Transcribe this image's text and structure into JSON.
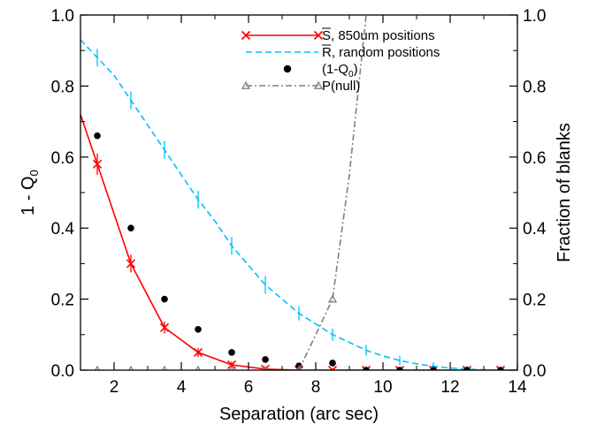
{
  "chart_data": {
    "type": "line",
    "xlabel": "Separation (arc sec)",
    "ylabel": "1 - Q",
    "ylabel_sub": "0",
    "y2label": "Fraction of blanks",
    "xlim": [
      1,
      14
    ],
    "ylim": [
      0,
      1
    ],
    "y2lim": [
      0,
      1
    ],
    "xticks": [
      "2",
      "4",
      "6",
      "8",
      "10",
      "12",
      "14"
    ],
    "yticks": [
      "0.0",
      "0.2",
      "0.4",
      "0.6",
      "0.8",
      "1.0"
    ],
    "y2ticks": [
      "0.0",
      "0.2",
      "0.4",
      "0.6",
      "0.8",
      "1.0"
    ],
    "grid": false,
    "legend_position": "top-right",
    "series": [
      {
        "name": "S, 850um positions",
        "color": "#ff0000",
        "style": "solid",
        "marker": "x",
        "curve_x": [
          1.0,
          1.5,
          2.5,
          3.5,
          4.5,
          5.5,
          6.5,
          7.5,
          8.5,
          9.5,
          10.5,
          11.5,
          12.5,
          13.5,
          14.0
        ],
        "curve_y": [
          0.72,
          0.58,
          0.3,
          0.12,
          0.05,
          0.015,
          0.003,
          0.0,
          0.0,
          0.0,
          0.0,
          0.0,
          0.0,
          0.0,
          0.0
        ],
        "marker_x": [
          1.5,
          2.5,
          3.5,
          4.5,
          5.5,
          6.5,
          7.5,
          8.5,
          9.5,
          10.5,
          11.5,
          12.5,
          13.5
        ],
        "marker_y": [
          0.58,
          0.3,
          0.12,
          0.05,
          0.015,
          0.003,
          0.0,
          0.0,
          0.0,
          0.0,
          0.0,
          0.0,
          0.0
        ],
        "error": [
          0.025,
          0.02,
          0.012,
          0.008,
          0.004,
          0.002,
          0.0,
          0.0,
          0.0,
          0.0,
          0.0,
          0.0,
          0.0
        ]
      },
      {
        "name": "R, random positions",
        "color": "#00c0ff",
        "style": "dashed",
        "marker": "none",
        "curve_x": [
          1.0,
          1.5,
          2.0,
          2.5,
          3.0,
          3.5,
          4.0,
          4.5,
          5.0,
          5.5,
          6.0,
          6.5,
          7.0,
          7.5,
          8.0,
          8.5,
          9.0,
          9.5,
          10.0,
          10.5,
          11.0,
          11.5,
          12.0,
          12.5,
          13.0,
          13.5
        ],
        "curve_y": [
          0.93,
          0.88,
          0.83,
          0.76,
          0.69,
          0.62,
          0.55,
          0.48,
          0.42,
          0.35,
          0.295,
          0.24,
          0.2,
          0.16,
          0.13,
          0.1,
          0.078,
          0.056,
          0.04,
          0.027,
          0.018,
          0.011,
          0.006,
          0.003,
          0.001,
          0.0
        ],
        "marker_x": [
          1.5,
          2.5,
          3.5,
          4.5,
          5.5,
          6.5,
          7.5,
          8.5,
          9.5,
          10.5,
          11.5,
          12.5,
          13.5
        ],
        "marker_y": [
          0.88,
          0.76,
          0.62,
          0.48,
          0.35,
          0.24,
          0.16,
          0.1,
          0.056,
          0.027,
          0.011,
          0.003,
          0.0
        ],
        "error": [
          0.02,
          0.02,
          0.02,
          0.02,
          0.02,
          0.02,
          0.015,
          0.012,
          0.01,
          0.008,
          0.006,
          0.004,
          0.002
        ]
      },
      {
        "name": "(1-Q",
        "name_sub": "0",
        "name_suffix": ")",
        "color": "#000000",
        "style": "none",
        "marker": "dot",
        "marker_x": [
          1.5,
          2.5,
          3.5,
          4.5,
          5.5,
          6.5,
          7.5,
          8.5,
          9.5,
          10.5,
          11.5,
          12.5,
          13.5
        ],
        "marker_y": [
          0.66,
          0.4,
          0.2,
          0.115,
          0.05,
          0.03,
          0.012,
          0.02,
          0.0,
          0.0,
          0.0,
          0.0,
          0.0
        ]
      },
      {
        "name": "P(null)",
        "color": "#808080",
        "style": "dashdot",
        "marker": "triangle",
        "curve_x": [
          7.5,
          8.5,
          9.0,
          9.5
        ],
        "curve_y": [
          0.0,
          0.2,
          0.55,
          1.0
        ],
        "marker_x": [
          1.5,
          2.5,
          3.5,
          4.5,
          5.5,
          6.5,
          7.5,
          8.5
        ],
        "marker_y": [
          0.0,
          0.0,
          0.0,
          0.0,
          0.0,
          0.0,
          0.0,
          0.2
        ]
      }
    ]
  }
}
